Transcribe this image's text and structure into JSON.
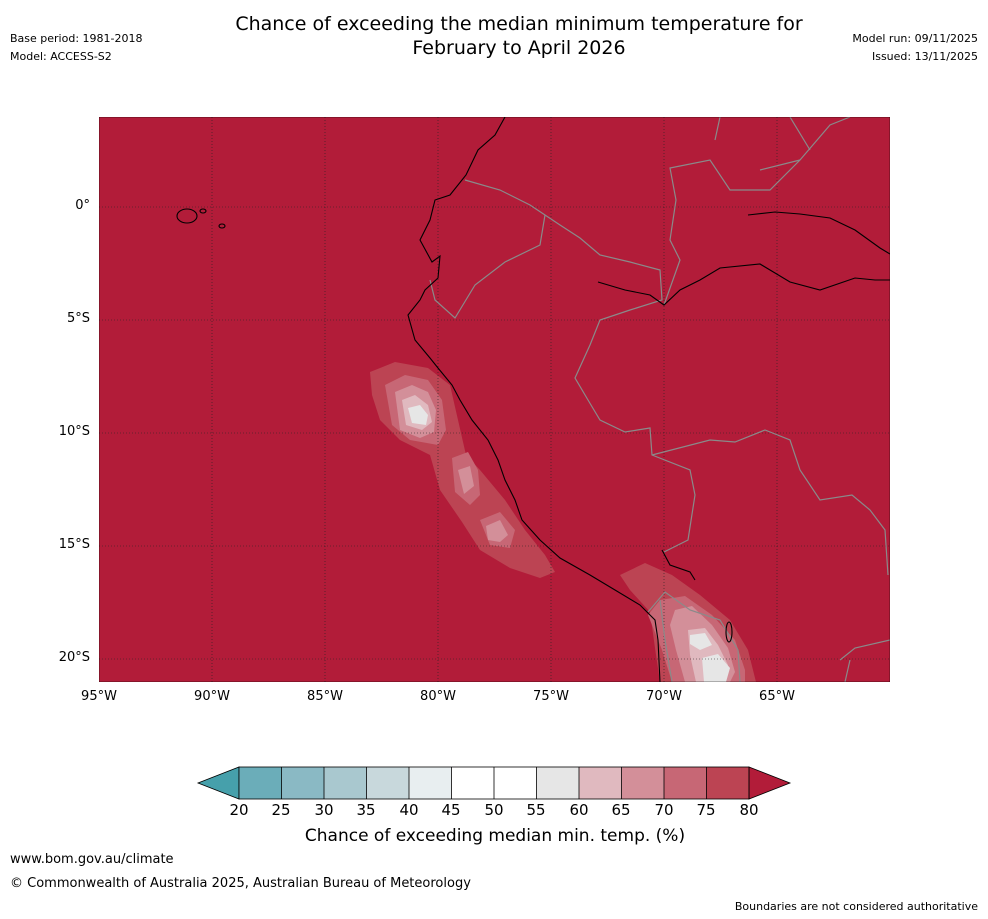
{
  "title_line1": "Chance of exceeding the median minimum temperature for",
  "title_line2": "February to April 2026",
  "meta_left": {
    "base_period": "Base period: 1981-2018",
    "model": "Model: ACCESS-S2"
  },
  "meta_right": {
    "model_run": "Model run: 09/11/2025",
    "issued": "Issued: 13/11/2025"
  },
  "map": {
    "lat_labels": [
      "0°",
      "5°S",
      "10°S",
      "15°S",
      "20°S"
    ],
    "lon_labels": [
      "95°W",
      "90°W",
      "85°W",
      "80°W",
      "75°W",
      "70°W",
      "65°W"
    ],
    "background_color": "#b21c39"
  },
  "colorbar": {
    "ticks": [
      "20",
      "25",
      "30",
      "35",
      "40",
      "45",
      "50",
      "55",
      "60",
      "65",
      "70",
      "75",
      "80"
    ],
    "colors": [
      "#6badb9",
      "#8ab9c4",
      "#a9c8cf",
      "#c8d8dc",
      "#e8eef0",
      "#ffffff",
      "#ffffff",
      "#e6e6e6",
      "#e0b9bf",
      "#d38f99",
      "#c76775",
      "#bc4453"
    ],
    "under_color": "#46a0ab",
    "over_color": "#b21c39",
    "label": "Chance of exceeding median min. temp. (%)"
  },
  "footer": {
    "url": "www.bom.gov.au/climate",
    "copyright": "© Commonwealth of Australia 2025, Australian Bureau of Meteorology",
    "disclaimer": "Boundaries are not considered authoritative"
  }
}
